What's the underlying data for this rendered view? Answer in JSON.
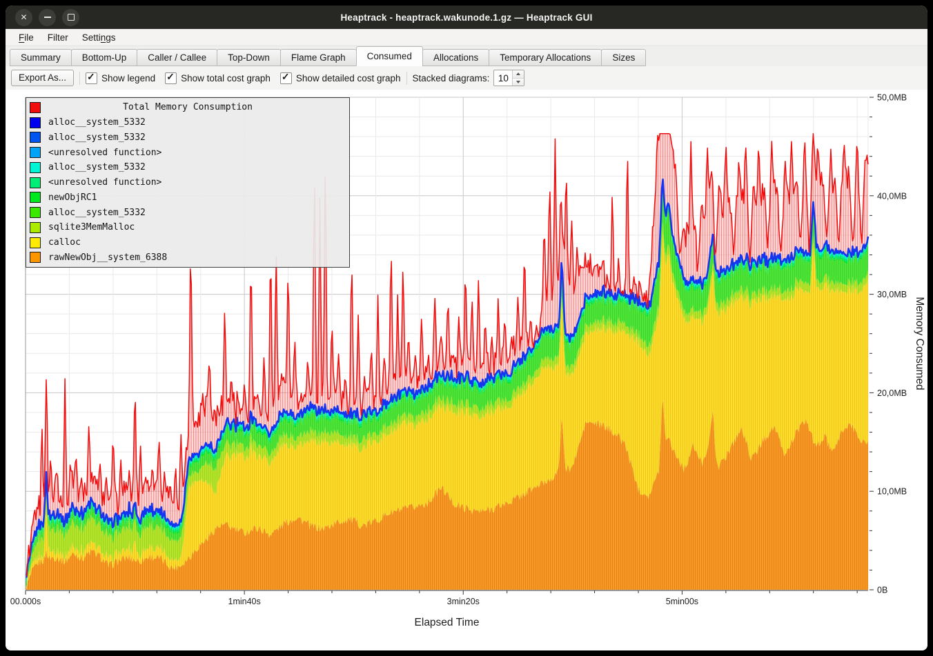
{
  "window": {
    "title": "Heaptrack - heaptrack.wakunode.1.gz — Heaptrack GUI"
  },
  "menu": {
    "items": [
      {
        "label": "File",
        "mnemonic": "F"
      },
      {
        "label": "Filter",
        "mnemonic": ""
      },
      {
        "label": "Settings",
        "mnemonic": "n"
      }
    ]
  },
  "tabs": {
    "active": "Consumed",
    "items": [
      "Summary",
      "Bottom-Up",
      "Caller / Callee",
      "Top-Down",
      "Flame Graph",
      "Consumed",
      "Allocations",
      "Temporary Allocations",
      "Sizes"
    ]
  },
  "toolbar": {
    "export_label": "Export As...",
    "checkboxes": [
      {
        "label": "Show legend",
        "checked": true
      },
      {
        "label": "Show total cost graph",
        "checked": true
      },
      {
        "label": "Show detailed cost graph",
        "checked": true
      }
    ],
    "stacked_label": "Stacked diagrams:",
    "stacked_value": "10"
  },
  "legend": {
    "title": "Total Memory Consumption",
    "title_color": "#f20d0d",
    "items": [
      {
        "label": "alloc__system_5332",
        "color": "#0000ee"
      },
      {
        "label": "alloc__system_5332",
        "color": "#0055f0"
      },
      {
        "label": "<unresolved function>",
        "color": "#00a3f5"
      },
      {
        "label": "alloc__system_5332",
        "color": "#00f5d5"
      },
      {
        "label": "<unresolved function>",
        "color": "#00ee77"
      },
      {
        "label": "newObjRC1",
        "color": "#00e81e"
      },
      {
        "label": "alloc__system_5332",
        "color": "#3ae800"
      },
      {
        "label": "sqlite3MemMalloc",
        "color": "#abeb00"
      },
      {
        "label": "calloc",
        "color": "#ffeb00"
      },
      {
        "label": "rawNewObj__system_6388",
        "color": "#fb9500"
      }
    ]
  },
  "chart_data": {
    "type": "area",
    "title": "Total Memory Consumption",
    "xlabel": "Elapsed Time",
    "ylabel": "Memory Consumed",
    "x_range_s": [
      0,
      385
    ],
    "y_range_mb": [
      0,
      50
    ],
    "x_ticks": [
      {
        "t": 0,
        "label": "00.000s"
      },
      {
        "t": 100,
        "label": "1min40s"
      },
      {
        "t": 200,
        "label": "3min20s"
      },
      {
        "t": 300,
        "label": "5min00s"
      }
    ],
    "x_minor_step_s": 20,
    "y_ticks": [
      {
        "mb": 0,
        "label": "0B"
      },
      {
        "mb": 10,
        "label": "10,0MB"
      },
      {
        "mb": 20,
        "label": "20,0MB"
      },
      {
        "mb": 30,
        "label": "30,0MB"
      },
      {
        "mb": 40,
        "label": "40,0MB"
      },
      {
        "mb": 50,
        "label": "50,0MB"
      }
    ],
    "y_minor_step_mb": 2,
    "grid": {
      "minor_color": "#e9e9e9",
      "major_color": "#c7c7c7"
    },
    "anchors_t": [
      0,
      3,
      6,
      10,
      14,
      18,
      22,
      26,
      30,
      34,
      38,
      42,
      47,
      52,
      57,
      62,
      67,
      71,
      75,
      79,
      83,
      87,
      91,
      95,
      100,
      106,
      112,
      118,
      124,
      130,
      136,
      142,
      148,
      154,
      160,
      166,
      172,
      178,
      184,
      190,
      196,
      202,
      208,
      214,
      220,
      226,
      232,
      238,
      244,
      250,
      256,
      262,
      268,
      274,
      280,
      285,
      289,
      293,
      297,
      301,
      305,
      309,
      313,
      317,
      322,
      327,
      332,
      337,
      342,
      347,
      352,
      357,
      361,
      365,
      369,
      373,
      377,
      381,
      385
    ],
    "series": [
      {
        "name": "rawNewObj__system_6388",
        "color": "#fa9b2a",
        "stripe": "rgba(205,112,0,0.55)",
        "jitter": 0.45,
        "values": [
          0.1,
          1.8,
          2.8,
          3.2,
          3.3,
          2.9,
          3.7,
          3.2,
          3.9,
          3.4,
          2.4,
          2.9,
          3.3,
          2.9,
          3.4,
          3.1,
          2.2,
          2.5,
          3.4,
          4.4,
          5.2,
          6.3,
          6.6,
          6.2,
          5.8,
          6.3,
          5.6,
          6.7,
          7.4,
          6.5,
          6.2,
          6.8,
          7.2,
          6.5,
          7.0,
          7.8,
          8.1,
          8.4,
          8.9,
          10.4,
          8.7,
          8.2,
          7.9,
          8.3,
          8.8,
          9.5,
          10.3,
          11.0,
          12.0,
          12.5,
          17.0,
          16.8,
          16.2,
          14.8,
          10.2,
          9.6,
          11.8,
          15.8,
          13.8,
          12.2,
          14.6,
          12.8,
          15.4,
          12.4,
          14.4,
          16.4,
          13.2,
          15.2,
          16.6,
          13.6,
          16.0,
          17.2,
          14.4,
          15.6,
          13.8,
          16.2,
          16.8,
          15.4,
          14.8
        ],
        "spikes": [
          [
            9.5,
            0.8,
            1.0
          ],
          [
            245,
            6.0,
            1.5
          ],
          [
            291,
            6.0,
            1.5
          ],
          [
            314,
            3.5,
            1.5
          ]
        ]
      },
      {
        "name": "calloc",
        "color": "#ffdf2e",
        "stripe": "rgba(219,170,0,0.5)",
        "jitter": 0.3,
        "values": [
          0.1,
          0.4,
          0.6,
          0.8,
          0.7,
          0.6,
          0.8,
          0.7,
          0.9,
          0.8,
          0.7,
          0.8,
          1.0,
          0.8,
          1.0,
          0.9,
          0.8,
          0.8,
          7.4,
          6.8,
          5.6,
          3.6,
          6.6,
          7.4,
          7.8,
          7.5,
          7.3,
          8.0,
          7.3,
          8.4,
          8.9,
          8.1,
          7.6,
          7.8,
          8.2,
          8.0,
          8.6,
          8.3,
          8.7,
          8.2,
          9.4,
          9.9,
          9.5,
          10.0,
          9.7,
          10.3,
          10.8,
          11.8,
          10.4,
          9.2,
          9.0,
          9.6,
          10.2,
          11.4,
          15.0,
          14.2,
          15.6,
          17.6,
          16.4,
          15.2,
          13.0,
          14.4,
          14.2,
          15.6,
          14.6,
          13.4,
          15.8,
          14.6,
          13.2,
          15.8,
          14.4,
          13.0,
          16.2,
          15.2,
          16.4,
          14.2,
          13.6,
          15.0,
          16.4
        ],
        "spikes": [
          [
            9.5,
            3.6,
            1.0
          ],
          [
            50,
            1.4,
            0.8
          ],
          [
            103,
            1.5,
            0.8
          ],
          [
            245,
            1.5,
            1.5
          ],
          [
            294,
            1.5,
            1.5
          ],
          [
            360,
            5.6,
            1.2
          ]
        ]
      },
      {
        "name": "sqlite3MemMalloc",
        "color": "#b5e62e",
        "stripe": "rgba(142,190,10,0.5)",
        "jitter": 0.15,
        "values": [
          0.1,
          0.9,
          1.7,
          2.0,
          2.3,
          2.2,
          2.4,
          2.3,
          2.5,
          2.4,
          2.1,
          2.0,
          2.2,
          2.1,
          2.2,
          2.1,
          2.0,
          2.0,
          1.1,
          0.9,
          2.0,
          2.4,
          1.4,
          1.1,
          1.0,
          1.1,
          0.9,
          1.0,
          0.9,
          1.0,
          0.9,
          0.9,
          0.8,
          0.9,
          0.8,
          0.9,
          0.8,
          0.8,
          0.9,
          0.8,
          0.8,
          0.9,
          0.8,
          0.8,
          0.8,
          0.8,
          0.8,
          0.9,
          0.8,
          0.8,
          0.8,
          0.8,
          0.8,
          0.8,
          0.8,
          0.9,
          1.0,
          1.0,
          0.9,
          0.8,
          0.8,
          0.8,
          0.8,
          0.8,
          0.8,
          0.8,
          0.8,
          0.8,
          0.8,
          0.8,
          0.8,
          0.8,
          0.8,
          0.8,
          0.8,
          0.8,
          0.8,
          0.8,
          0.8
        ]
      },
      {
        "name": "alloc__system_5332",
        "color": "#52e63a",
        "stripe": "rgba(32,196,22,0.5)",
        "jitter": 0.15,
        "values": [
          0.1,
          0.4,
          0.6,
          0.7,
          0.7,
          0.6,
          0.7,
          0.7,
          0.8,
          0.7,
          0.7,
          0.7,
          0.8,
          0.8,
          0.9,
          0.8,
          0.8,
          0.8,
          0.9,
          1.0,
          1.1,
          1.0,
          1.2,
          1.3,
          1.3,
          1.4,
          1.3,
          1.5,
          1.4,
          1.6,
          1.5,
          1.4,
          1.5,
          1.6,
          1.5,
          1.6,
          1.7,
          1.6,
          1.7,
          1.6,
          1.8,
          1.9,
          1.8,
          1.9,
          1.8,
          1.9,
          2.0,
          2.2,
          2.4,
          2.2,
          2.0,
          2.1,
          2.0,
          2.2,
          2.6,
          3.2,
          3.6,
          3.4,
          2.8,
          2.4,
          2.2,
          2.3,
          2.2,
          2.4,
          2.3,
          2.2,
          2.4,
          2.3,
          2.2,
          2.4,
          2.3,
          2.2,
          2.6,
          2.4,
          2.3,
          2.4,
          2.2,
          2.4,
          2.5
        ]
      },
      {
        "name": "newObjRC1",
        "color": "#00e81e",
        "stripe": "rgba(0,190,20,0.45)",
        "jitter": 0.02,
        "values": 0.15
      },
      {
        "name": "<unresolved function>",
        "color": "#00ee77",
        "stripe": "rgba(0,200,90,0.45)",
        "jitter": 0.03,
        "values": 0.28
      },
      {
        "name": "alloc__system_5332",
        "color": "#00f5d5",
        "stripe": "rgba(0,200,180,0.45)",
        "jitter": 0.03,
        "values": 0.22
      },
      {
        "name": "<unresolved function>",
        "color": "#18aaf5",
        "stripe": "rgba(10,130,220,0.45)",
        "jitter": 0.02,
        "values": 0.16
      }
    ],
    "stack_line": {
      "name": "alloc__system_5332",
      "color": "#1536f0",
      "width": 2.6
    },
    "total": {
      "name": "Total Memory Consumption",
      "color": "#f20d0d",
      "line_width": 1.5,
      "fill": "rgba(250,118,118,0.3)",
      "stripe": "rgba(228,35,35,0.45)",
      "jitter": 1.1,
      "max_mb": 46.3,
      "delta_above_stack": [
        0.3,
        1.2,
        1.8,
        1.6,
        2.0,
        1.7,
        2.1,
        1.8,
        2.2,
        1.9,
        2.1,
        1.8,
        2.3,
        2.0,
        2.4,
        2.1,
        2.3,
        2.6,
        3.2,
        3.6,
        3.9,
        3.4,
        2.4,
        1.8,
        1.5,
        2.0,
        1.4,
        2.2,
        1.5,
        1.2,
        1.8,
        1.3,
        1.1,
        1.5,
        1.2,
        1.6,
        1.3,
        1.7,
        1.4,
        1.8,
        1.5,
        1.3,
        1.6,
        1.3,
        1.7,
        1.4,
        0.8,
        3.4,
        4.6,
        5.2,
        3.8,
        2.6,
        1.0,
        0.8,
        0.9,
        1.2,
        13.0,
        9.0,
        8.0,
        4.2,
        6.5,
        5.5,
        7.5,
        6.0,
        7.0,
        6.4,
        7.6,
        6.2,
        7.8,
        6.0,
        7.4,
        8.2,
        6.4,
        7.6,
        6.2,
        8.0,
        7.2,
        7.8,
        8.4
      ],
      "spikes": [
        [
          7.5,
          17
        ],
        [
          9.5,
          21.6
        ],
        [
          11.5,
          14
        ],
        [
          14,
          12.5
        ],
        [
          18,
          21.5
        ],
        [
          20.5,
          13
        ],
        [
          23,
          14.2
        ],
        [
          25.5,
          11.5
        ],
        [
          29,
          17.4
        ],
        [
          31.5,
          12
        ],
        [
          34,
          13
        ],
        [
          37,
          11.5
        ],
        [
          40,
          17
        ],
        [
          43.5,
          13.5
        ],
        [
          46,
          11
        ],
        [
          50,
          21.5
        ],
        [
          52.5,
          15
        ],
        [
          55,
          11.5
        ],
        [
          58,
          12.5
        ],
        [
          61,
          15.4
        ],
        [
          63.5,
          12
        ],
        [
          66,
          11
        ],
        [
          68.5,
          13
        ],
        [
          71,
          16
        ],
        [
          75.5,
          37.5
        ],
        [
          78,
          15
        ],
        [
          81,
          20
        ],
        [
          84,
          24
        ],
        [
          88,
          18
        ],
        [
          91,
          29
        ],
        [
          94,
          22
        ],
        [
          97,
          18
        ],
        [
          100,
          21
        ],
        [
          103,
          34.8
        ],
        [
          106,
          20
        ],
        [
          109,
          24
        ],
        [
          112,
          36.5
        ],
        [
          114.5,
          35.8
        ],
        [
          117,
          22
        ],
        [
          120,
          34
        ],
        [
          123,
          26
        ],
        [
          126,
          20
        ],
        [
          129,
          24
        ],
        [
          132,
          44
        ],
        [
          134.5,
          40
        ],
        [
          137,
          46
        ],
        [
          140,
          28
        ],
        [
          143,
          24
        ],
        [
          146,
          22
        ],
        [
          149,
          35
        ],
        [
          152,
          28
        ],
        [
          155,
          22
        ],
        [
          158,
          25
        ],
        [
          161,
          30
        ],
        [
          164,
          24
        ],
        [
          167,
          36
        ],
        [
          170,
          30
        ],
        [
          172.5,
          34
        ],
        [
          175,
          26
        ],
        [
          178,
          24
        ],
        [
          181,
          28
        ],
        [
          184,
          24
        ],
        [
          187,
          30
        ],
        [
          190,
          26
        ],
        [
          193,
          30
        ],
        [
          195.5,
          24
        ],
        [
          198,
          28
        ],
        [
          201,
          33.5
        ],
        [
          204,
          30
        ],
        [
          207,
          32
        ],
        [
          210,
          28
        ],
        [
          213,
          26
        ],
        [
          216,
          30
        ],
        [
          219,
          28
        ],
        [
          222,
          26
        ],
        [
          225,
          30
        ],
        [
          228,
          35.5
        ],
        [
          231,
          30
        ],
        [
          234,
          28
        ],
        [
          237,
          38
        ],
        [
          239.5,
          42
        ],
        [
          242,
          46
        ],
        [
          244.5,
          40
        ],
        [
          247,
          44
        ],
        [
          249.5,
          38
        ],
        [
          252,
          35
        ],
        [
          255,
          33
        ],
        [
          258,
          30.5
        ],
        [
          261,
          33
        ],
        [
          264,
          31
        ],
        [
          268,
          45.7
        ],
        [
          271,
          34
        ],
        [
          275,
          45.7
        ],
        [
          278,
          33
        ],
        [
          281,
          32
        ],
        [
          289,
          46.3
        ],
        [
          292,
          46
        ],
        [
          295,
          45.6
        ],
        [
          298,
          40
        ],
        [
          304,
          45.7
        ],
        [
          306.5,
          44
        ],
        [
          309,
          40
        ],
        [
          311.5,
          45.7
        ],
        [
          314,
          38
        ],
        [
          317,
          42
        ],
        [
          320,
          45.7
        ],
        [
          323,
          40
        ],
        [
          326,
          44
        ],
        [
          329,
          45.7
        ],
        [
          332,
          41
        ],
        [
          335,
          45.7
        ],
        [
          338,
          43
        ],
        [
          341,
          45.7
        ],
        [
          344,
          39
        ],
        [
          347,
          44
        ],
        [
          350,
          45.7
        ],
        [
          353,
          42
        ],
        [
          356,
          45.7
        ],
        [
          359,
          43
        ],
        [
          362,
          45.7
        ],
        [
          365,
          41
        ],
        [
          368,
          45
        ],
        [
          371,
          43
        ],
        [
          374,
          45.7
        ],
        [
          377,
          42
        ],
        [
          380,
          45.7
        ],
        [
          383,
          44
        ]
      ],
      "dips": [
        [
          232,
          22.2
        ],
        [
          234.5,
          21.8
        ],
        [
          267,
          30.2
        ],
        [
          272.5,
          30.0
        ],
        [
          277,
          30.0
        ],
        [
          282,
          29.8
        ],
        [
          299,
          33.5
        ],
        [
          307,
          31.5
        ],
        [
          315,
          32.3
        ],
        [
          323.5,
          33.8
        ],
        [
          331,
          33.2
        ],
        [
          339,
          34.5
        ],
        [
          345,
          33.6
        ],
        [
          354,
          34.5
        ],
        [
          358,
          33.8
        ],
        [
          366,
          34.8
        ],
        [
          371.5,
          34.2
        ],
        [
          378,
          33.6
        ],
        [
          382,
          34.4
        ]
      ]
    }
  }
}
